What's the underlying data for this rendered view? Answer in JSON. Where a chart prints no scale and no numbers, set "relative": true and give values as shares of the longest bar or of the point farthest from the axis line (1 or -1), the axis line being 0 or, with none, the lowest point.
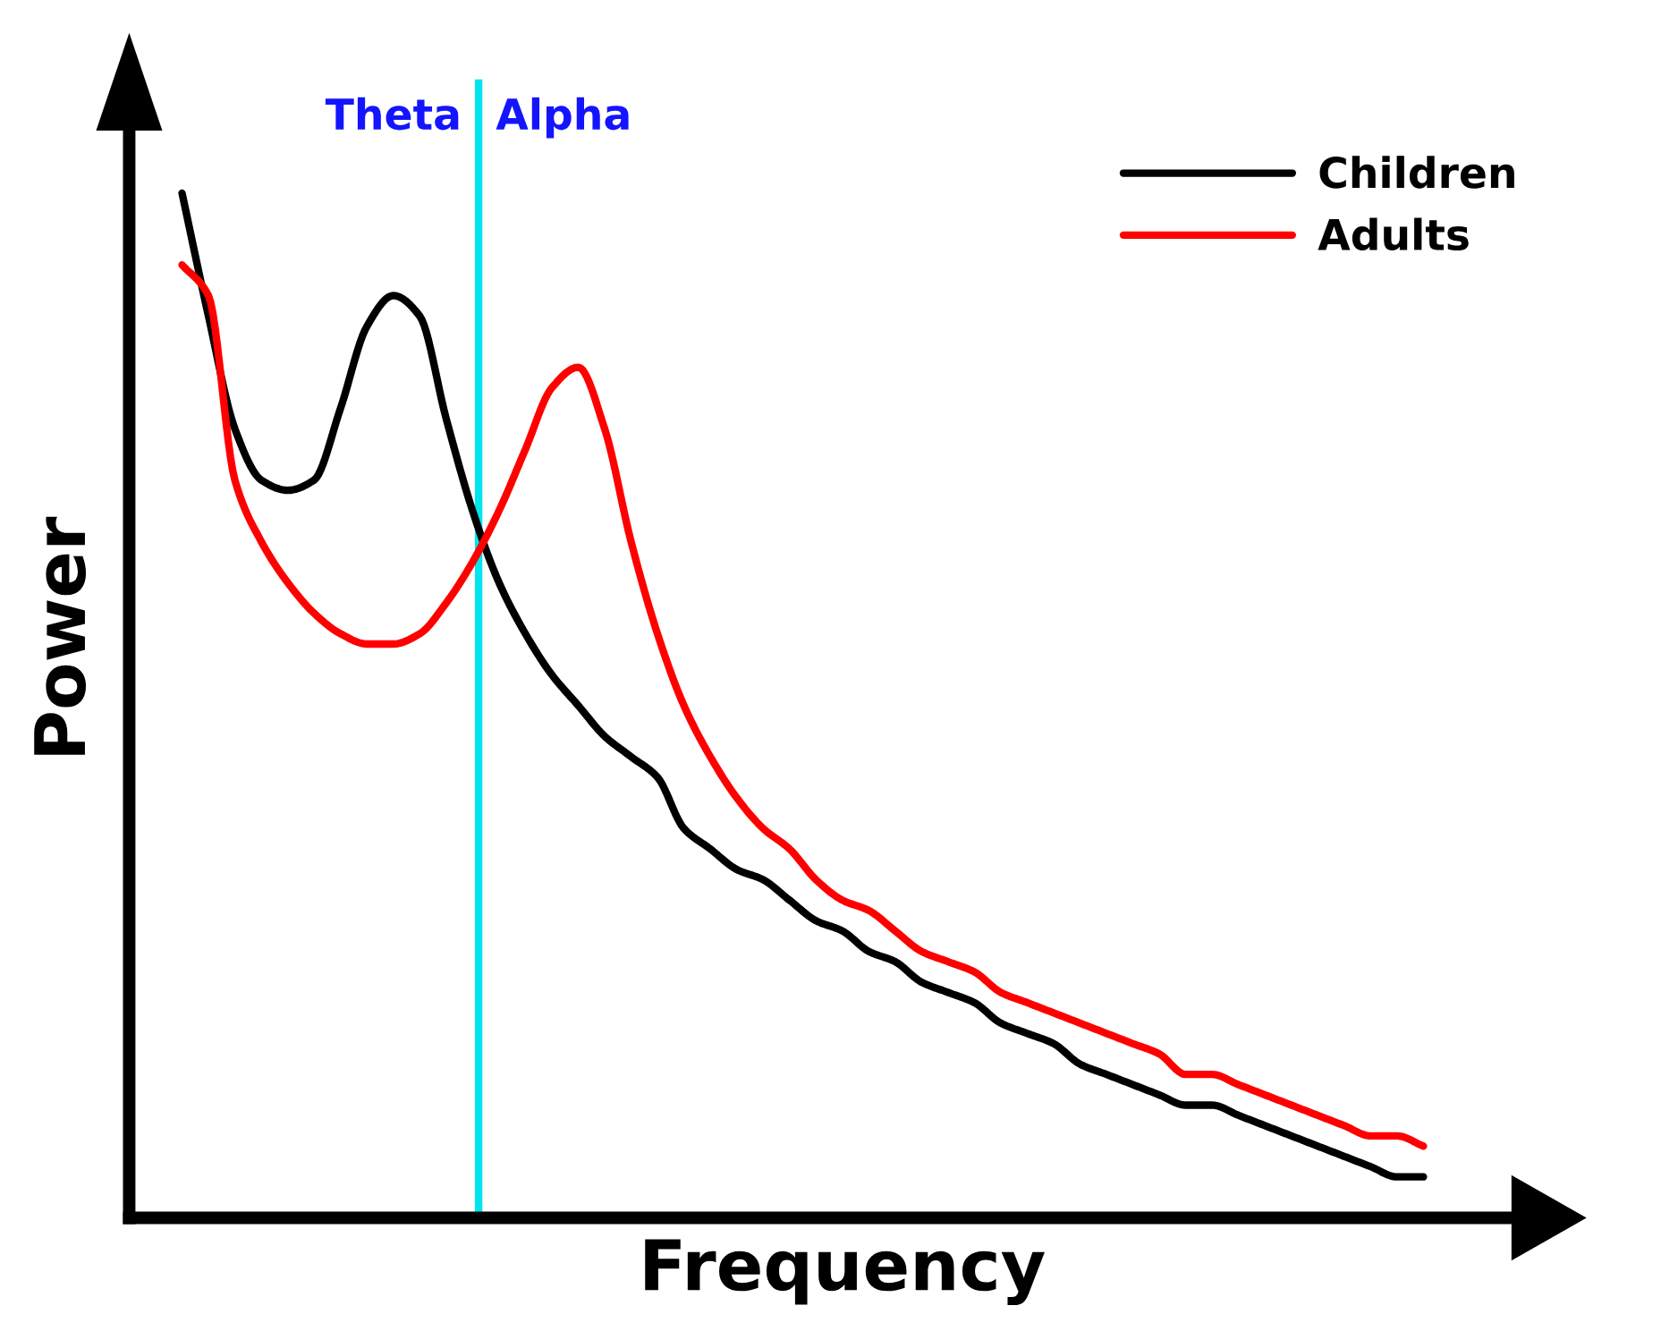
{
  "chart_data": {
    "type": "line",
    "relative": true,
    "xlabel": "Frequency",
    "ylabel": "Power",
    "categories": [
      null,
      null,
      null,
      null,
      null,
      null,
      null,
      null,
      null,
      null,
      null,
      null,
      null,
      null,
      null,
      null,
      null,
      null,
      null,
      null,
      null,
      null,
      null,
      null,
      null,
      null,
      null,
      null,
      null,
      null,
      null,
      null,
      null,
      null,
      null,
      null,
      null,
      null,
      null,
      null,
      null,
      null,
      null,
      null,
      null,
      null,
      null,
      null
    ],
    "series": [
      {
        "name": "Children",
        "color": "#000000",
        "values": [
          1.0,
          0.88,
          0.77,
          0.72,
          0.71,
          0.72,
          0.79,
          0.87,
          0.9,
          0.88,
          0.78,
          0.69,
          0.62,
          0.57,
          0.53,
          0.5,
          0.47,
          0.45,
          0.43,
          0.38,
          0.36,
          0.34,
          0.33,
          0.31,
          0.29,
          0.28,
          0.26,
          0.25,
          0.23,
          0.22,
          0.21,
          0.19,
          0.18,
          0.17,
          0.15,
          0.14,
          0.13,
          0.12,
          0.11,
          0.11,
          0.1,
          0.09,
          0.08,
          0.07,
          0.06,
          0.05,
          0.04,
          0.04
        ]
      },
      {
        "name": "Adults",
        "color": "#ff0000",
        "values": [
          0.93,
          0.9,
          0.72,
          0.66,
          0.62,
          0.59,
          0.57,
          0.56,
          0.56,
          0.57,
          0.6,
          0.64,
          0.69,
          0.75,
          0.81,
          0.83,
          0.77,
          0.66,
          0.57,
          0.5,
          0.45,
          0.41,
          0.38,
          0.36,
          0.33,
          0.31,
          0.3,
          0.28,
          0.26,
          0.25,
          0.24,
          0.22,
          0.21,
          0.2,
          0.19,
          0.18,
          0.17,
          0.16,
          0.14,
          0.14,
          0.13,
          0.12,
          0.11,
          0.1,
          0.09,
          0.08,
          0.08,
          0.07
        ]
      }
    ],
    "annotations": [
      "Theta",
      "Alpha"
    ],
    "legend": "top right"
  }
}
